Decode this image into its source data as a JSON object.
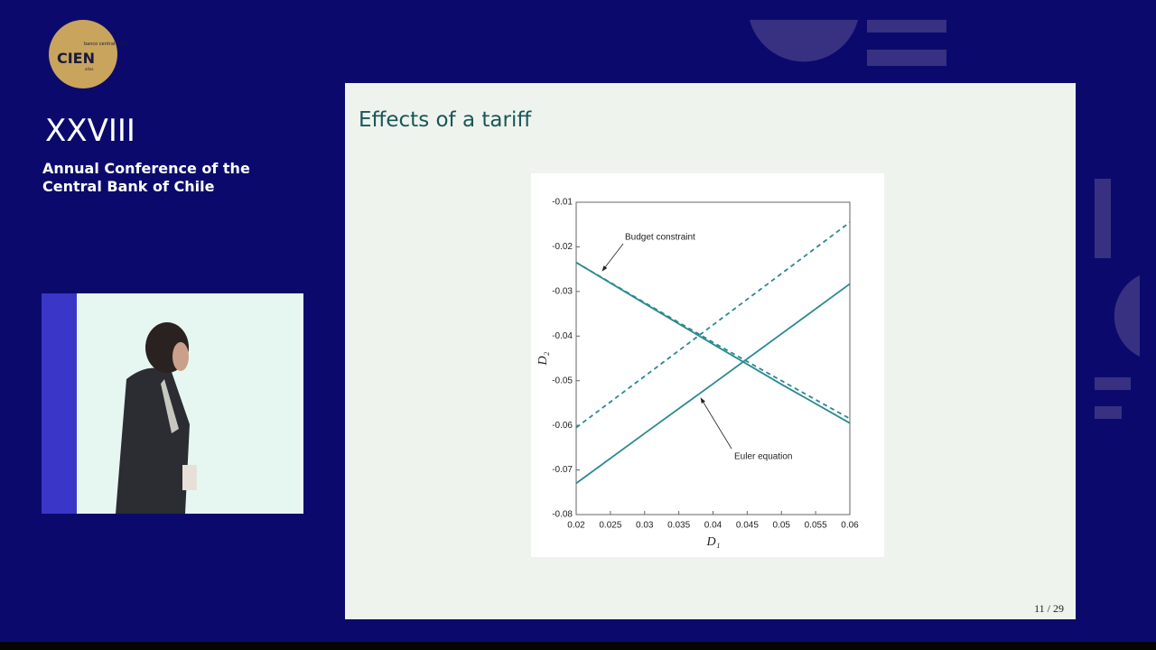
{
  "branding": {
    "logo_main": "CIEN",
    "logo_small": "banco central Chile",
    "logo_years": "años"
  },
  "conference": {
    "number": "XXVIII",
    "name_lines": [
      "Annual Conference of the",
      "Central Bank of Chile"
    ]
  },
  "slide": {
    "title": "Effects of a tariff",
    "page": "11 / 29"
  },
  "chart_data": {
    "type": "line",
    "x_label": "D₁",
    "y_label": "D₂",
    "x": [
      0.02,
      0.03,
      0.04,
      0.05,
      0.06
    ],
    "series": [
      {
        "color": "#2a8a8e",
        "style": "solid",
        "values": [
          -0.0235,
          -0.0327,
          -0.0418,
          -0.0508,
          -0.0595
        ]
      },
      {
        "color": "#2a8a8e",
        "style": "dashed",
        "values": [
          -0.0235,
          -0.0325,
          -0.0414,
          -0.05,
          -0.0585
        ]
      },
      {
        "color": "#2a8a8e",
        "style": "solid",
        "values": [
          -0.073,
          -0.0618,
          -0.0507,
          -0.0395,
          -0.0283
        ]
      },
      {
        "color": "#2a8a8e",
        "style": "dashed",
        "values": [
          -0.0605,
          -0.049,
          -0.0375,
          -0.026,
          -0.0145
        ]
      }
    ],
    "annotations": [
      "Budget constraint",
      "Euler equation"
    ],
    "xlim": [
      0.02,
      0.06
    ],
    "xticks": [
      0.02,
      0.025,
      0.03,
      0.035,
      0.04,
      0.045,
      0.05,
      0.055,
      0.06
    ],
    "ylim": [
      -0.08,
      -0.01
    ],
    "yticks": [
      -0.08,
      -0.07,
      -0.06,
      -0.05,
      -0.04,
      -0.03,
      -0.02,
      -0.01
    ],
    "grid": false
  }
}
